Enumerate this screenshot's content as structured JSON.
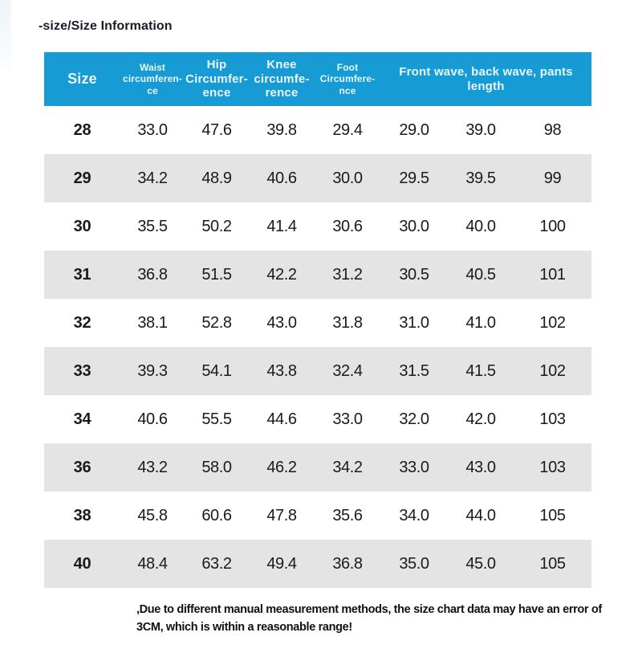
{
  "page": {
    "title": "-size/Size Information",
    "note_lines": [
      ",Due to different manual measurement methods, the size chart data may have an error of",
      "3CM, which is within a reasonable range!"
    ]
  },
  "colors": {
    "header_bg": "#169bd5",
    "header_text": "#eaf6fc",
    "row_alt": "#e4e4e4",
    "text": "#1a1a1a",
    "title_text": "#1b1b2b"
  },
  "table": {
    "columns": [
      {
        "id": "size",
        "style": "lg",
        "span": 1,
        "lines": [
          "Size"
        ]
      },
      {
        "id": "waist",
        "style": "sm",
        "span": 1,
        "lines": [
          "Waist",
          "circumferen-",
          "ce"
        ]
      },
      {
        "id": "hip",
        "style": "md",
        "span": 1,
        "lines": [
          "Hip",
          "Circumfer-",
          "ence"
        ]
      },
      {
        "id": "knee",
        "style": "md",
        "span": 1,
        "lines": [
          "Knee",
          "circumfe-",
          "rence"
        ]
      },
      {
        "id": "foot",
        "style": "sm",
        "span": 1,
        "lines": [
          "Foot",
          "Circumfere-",
          "nce"
        ]
      },
      {
        "id": "front-back-length",
        "style": "md",
        "span": 3,
        "lines": [
          "Front wave, back wave, pants length"
        ]
      }
    ],
    "rows": [
      [
        "28",
        "33.0",
        "47.6",
        "39.8",
        "29.4",
        "29.0",
        "39.0",
        "98"
      ],
      [
        "29",
        "34.2",
        "48.9",
        "40.6",
        "30.0",
        "29.5",
        "39.5",
        "99"
      ],
      [
        "30",
        "35.5",
        "50.2",
        "41.4",
        "30.6",
        "30.0",
        "40.0",
        "100"
      ],
      [
        "31",
        "36.8",
        "51.5",
        "42.2",
        "31.2",
        "30.5",
        "40.5",
        "101"
      ],
      [
        "32",
        "38.1",
        "52.8",
        "43.0",
        "31.8",
        "31.0",
        "41.0",
        "102"
      ],
      [
        "33",
        "39.3",
        "54.1",
        "43.8",
        "32.4",
        "31.5",
        "41.5",
        "102"
      ],
      [
        "34",
        "40.6",
        "55.5",
        "44.6",
        "33.0",
        "32.0",
        "42.0",
        "103"
      ],
      [
        "36",
        "43.2",
        "58.0",
        "46.2",
        "34.2",
        "33.0",
        "43.0",
        "103"
      ],
      [
        "38",
        "45.8",
        "60.6",
        "47.8",
        "35.6",
        "34.0",
        "44.0",
        "105"
      ],
      [
        "40",
        "48.4",
        "63.2",
        "49.4",
        "36.8",
        "35.0",
        "45.0",
        "105"
      ]
    ]
  },
  "chart_data": {
    "type": "table",
    "title": "-size/Size Information",
    "columns": [
      "Size",
      "Waist circumference",
      "Hip Circumference",
      "Knee circumference",
      "Foot Circumference",
      "Front wave",
      "Back wave",
      "Pants length"
    ],
    "rows": [
      [
        28,
        33.0,
        47.6,
        39.8,
        29.4,
        29.0,
        39.0,
        98
      ],
      [
        29,
        34.2,
        48.9,
        40.6,
        30.0,
        29.5,
        39.5,
        99
      ],
      [
        30,
        35.5,
        50.2,
        41.4,
        30.6,
        30.0,
        40.0,
        100
      ],
      [
        31,
        36.8,
        51.5,
        42.2,
        31.2,
        30.5,
        40.5,
        101
      ],
      [
        32,
        38.1,
        52.8,
        43.0,
        31.8,
        31.0,
        41.0,
        102
      ],
      [
        33,
        39.3,
        54.1,
        43.8,
        32.4,
        31.5,
        41.5,
        102
      ],
      [
        34,
        40.6,
        55.5,
        44.6,
        33.0,
        32.0,
        42.0,
        103
      ],
      [
        36,
        43.2,
        58.0,
        46.2,
        34.2,
        33.0,
        43.0,
        103
      ],
      [
        38,
        45.8,
        60.6,
        47.8,
        35.6,
        34.0,
        44.0,
        105
      ],
      [
        40,
        48.4,
        63.2,
        49.4,
        36.8,
        35.0,
        45.0,
        105
      ]
    ],
    "note": "Due to different manual measurement methods, the size chart data may have an error of 3CM, which is within a reasonable range!",
    "header_style": {
      "background": "#169bd5",
      "text_color": "#eaf6fc",
      "alt_row": "#e4e4e4"
    }
  }
}
